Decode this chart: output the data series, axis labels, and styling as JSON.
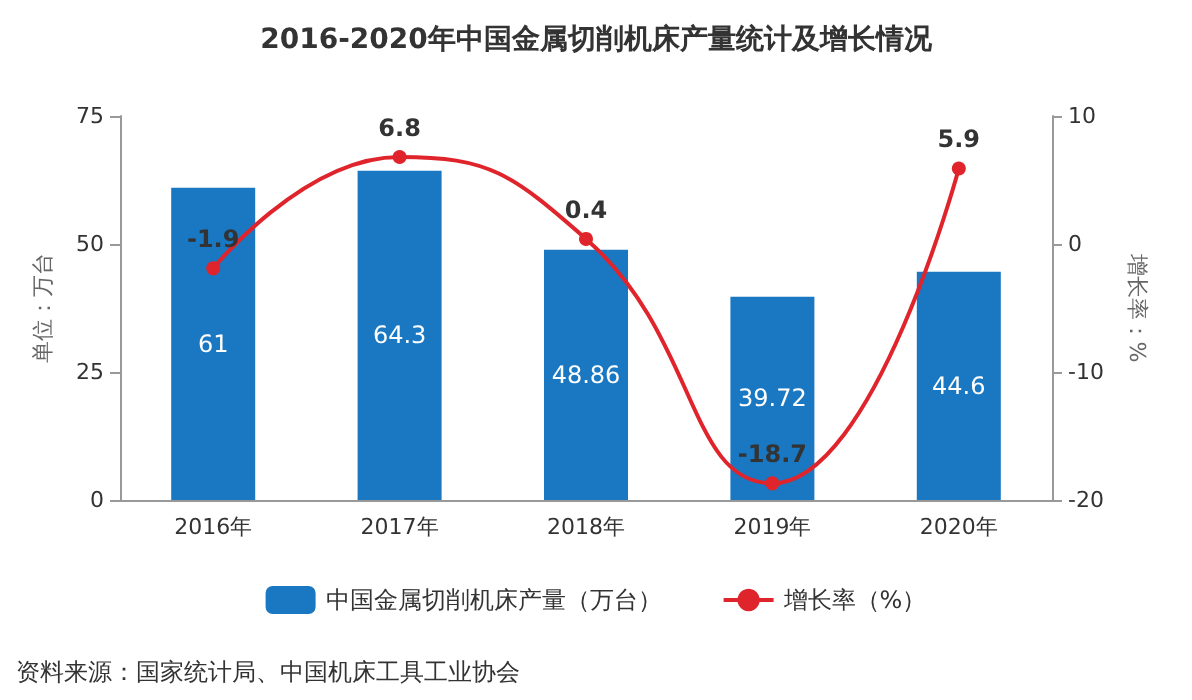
{
  "chart_data": {
    "type": "bar",
    "title": "2016-2020年中国金属切削机床产量统计及增长情况",
    "categories": [
      "2016年",
      "2017年",
      "2018年",
      "2019年",
      "2020年"
    ],
    "series": [
      {
        "name": "中国金属切削机床产量（万台）",
        "color": "#1a78c2",
        "values": [
          61,
          64.3,
          48.86,
          39.72,
          44.6
        ]
      },
      {
        "name": "增长率（%）",
        "type": "line",
        "axis": "y2",
        "color": "#e0242b",
        "values": [
          -1.9,
          6.8,
          0.4,
          -18.7,
          5.9
        ]
      }
    ],
    "ylabel": "单位：万台",
    "y2label": "增长率：%",
    "ylim": [
      0,
      75
    ],
    "yticks": [
      0,
      25,
      50,
      75
    ],
    "y2lim": [
      -20,
      10
    ],
    "y2ticks": [
      -20,
      -10,
      0,
      10
    ],
    "data_labels": true,
    "marker": "circle",
    "grid": false,
    "legend": "bottom",
    "annotations": [
      "资料来源：国家统计局、中国机床工具工业协会"
    ]
  }
}
